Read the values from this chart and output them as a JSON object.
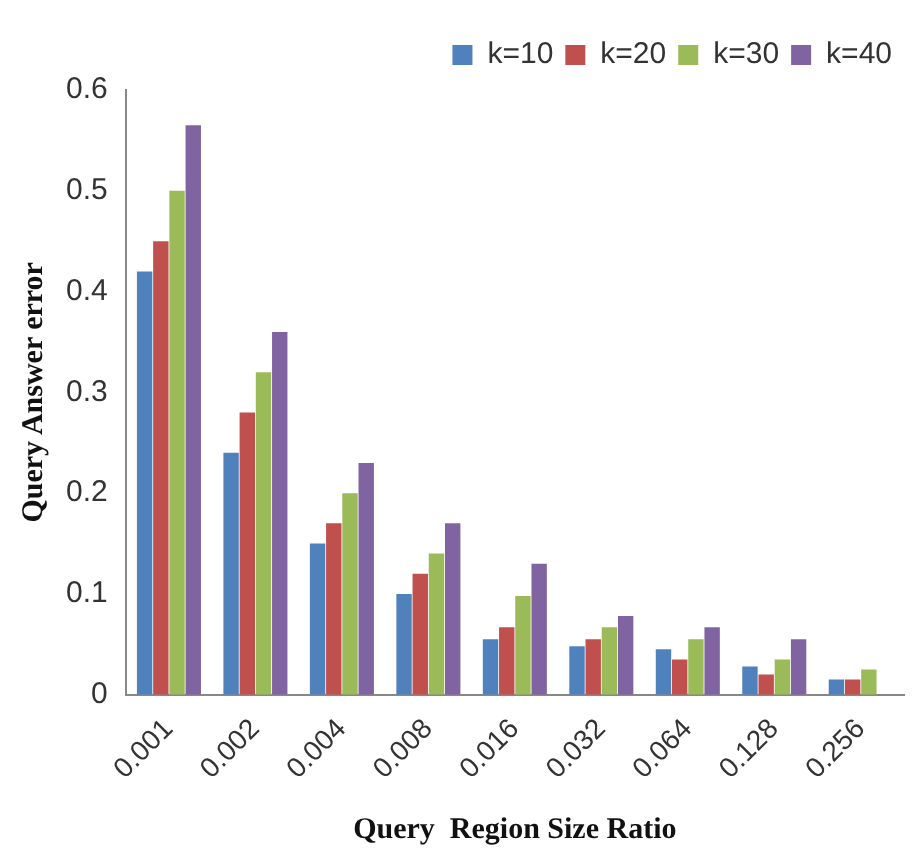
{
  "chart_data": {
    "type": "bar",
    "xlabel": "Query  Region Size Ratio",
    "ylabel": "Query Answer error",
    "categories": [
      "0.001",
      "0.002",
      "0.004",
      "0.008",
      "0.016",
      "0.032",
      "0.064",
      "0.128",
      "0.256"
    ],
    "series": [
      {
        "name": "k=10",
        "color": "#4f81bd",
        "values": [
          0.42,
          0.24,
          0.15,
          0.1,
          0.055,
          0.048,
          0.045,
          0.028,
          0.015
        ]
      },
      {
        "name": "k=20",
        "color": "#c0504d",
        "values": [
          0.45,
          0.28,
          0.17,
          0.12,
          0.067,
          0.055,
          0.035,
          0.02,
          0.015
        ]
      },
      {
        "name": "k=30",
        "color": "#9bbb59",
        "values": [
          0.5,
          0.32,
          0.2,
          0.14,
          0.098,
          0.067,
          0.055,
          0.035,
          0.025
        ]
      },
      {
        "name": "k=40",
        "color": "#8064a2",
        "values": [
          0.565,
          0.36,
          0.23,
          0.17,
          0.13,
          0.078,
          0.067,
          0.055,
          null
        ]
      }
    ],
    "ylim": [
      0,
      0.6
    ],
    "yticks": [
      0,
      0.1,
      0.2,
      0.3,
      0.4,
      0.5,
      0.6
    ],
    "grid": false,
    "legend": "top right"
  }
}
